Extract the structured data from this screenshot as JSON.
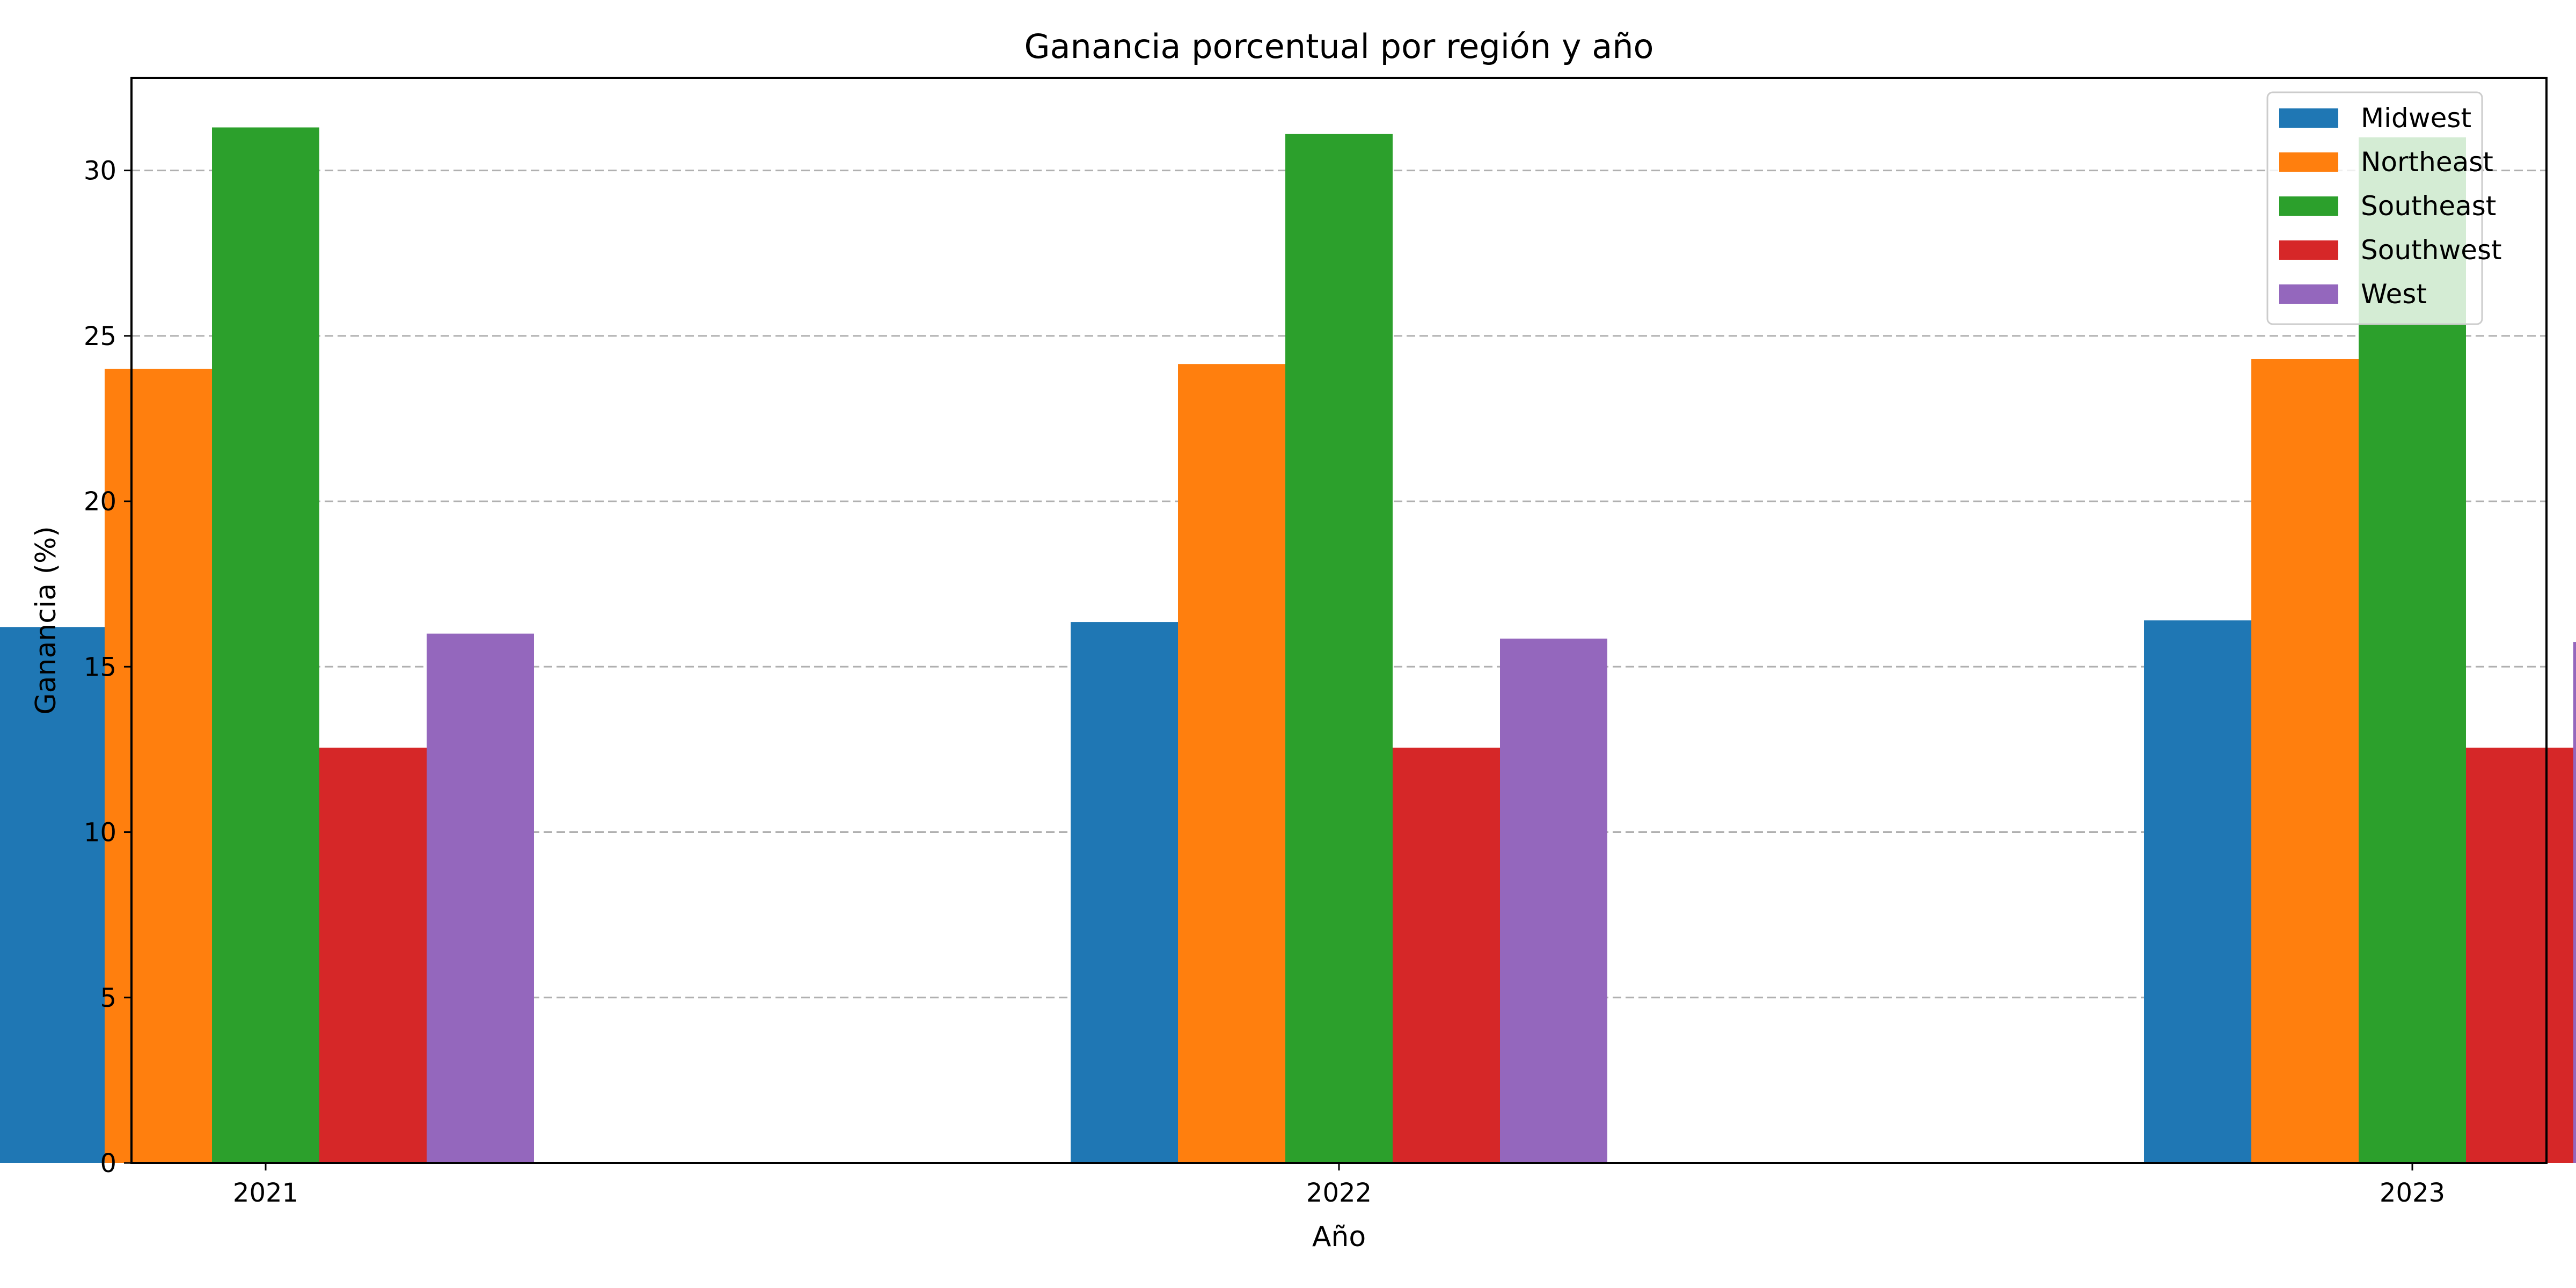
{
  "chart_data": {
    "type": "bar",
    "title": "Ganancia porcentual por región y año",
    "xlabel": "Año",
    "ylabel": "Ganancia (%)",
    "categories": [
      "2021",
      "2022",
      "2023"
    ],
    "ylim": [
      0,
      32.8
    ],
    "yticks": [
      0,
      5,
      10,
      15,
      20,
      25,
      30
    ],
    "grid": "horizontal dashed",
    "legend_position": "top-right",
    "series": [
      {
        "name": "Midwest",
        "color": "#1f77b4",
        "values": [
          16.2,
          16.35,
          16.4
        ]
      },
      {
        "name": "Northeast",
        "color": "#ff7f0e",
        "values": [
          24.0,
          24.15,
          24.3
        ]
      },
      {
        "name": "Southeast",
        "color": "#2ca02c",
        "values": [
          31.3,
          31.1,
          31.0
        ]
      },
      {
        "name": "Southwest",
        "color": "#d62728",
        "values": [
          12.55,
          12.55,
          12.55
        ]
      },
      {
        "name": "West",
        "color": "#9467bd",
        "values": [
          16.0,
          15.85,
          15.75
        ]
      }
    ]
  }
}
